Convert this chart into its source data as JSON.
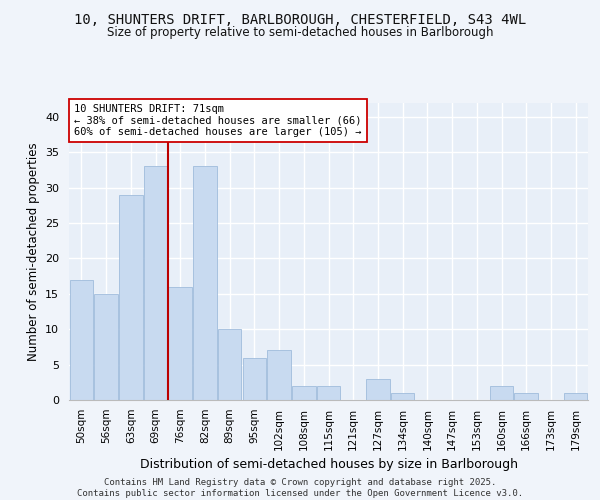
{
  "title1": "10, SHUNTERS DRIFT, BARLBOROUGH, CHESTERFIELD, S43 4WL",
  "title2": "Size of property relative to semi-detached houses in Barlborough",
  "xlabel": "Distribution of semi-detached houses by size in Barlborough",
  "ylabel": "Number of semi-detached properties",
  "categories": [
    "50sqm",
    "56sqm",
    "63sqm",
    "69sqm",
    "76sqm",
    "82sqm",
    "89sqm",
    "95sqm",
    "102sqm",
    "108sqm",
    "115sqm",
    "121sqm",
    "127sqm",
    "134sqm",
    "140sqm",
    "147sqm",
    "153sqm",
    "160sqm",
    "166sqm",
    "173sqm",
    "179sqm"
  ],
  "values": [
    17,
    15,
    29,
    33,
    16,
    33,
    10,
    6,
    7,
    2,
    2,
    0,
    3,
    1,
    0,
    0,
    0,
    2,
    1,
    0,
    1
  ],
  "bar_color": "#c8daf0",
  "bar_edge_color": "#a0bcdc",
  "bg_color": "#e8eff8",
  "grid_color": "#ffffff",
  "vline_color": "#bb0000",
  "annotation_text": "10 SHUNTERS DRIFT: 71sqm\n← 38% of semi-detached houses are smaller (66)\n60% of semi-detached houses are larger (105) →",
  "annotation_box_color": "#ffffff",
  "annotation_box_edge": "#cc0000",
  "ylim": [
    0,
    42
  ],
  "yticks": [
    0,
    5,
    10,
    15,
    20,
    25,
    30,
    35,
    40
  ],
  "footer": "Contains HM Land Registry data © Crown copyright and database right 2025.\nContains public sector information licensed under the Open Government Licence v3.0.",
  "fig_bg": "#f0f4fa"
}
